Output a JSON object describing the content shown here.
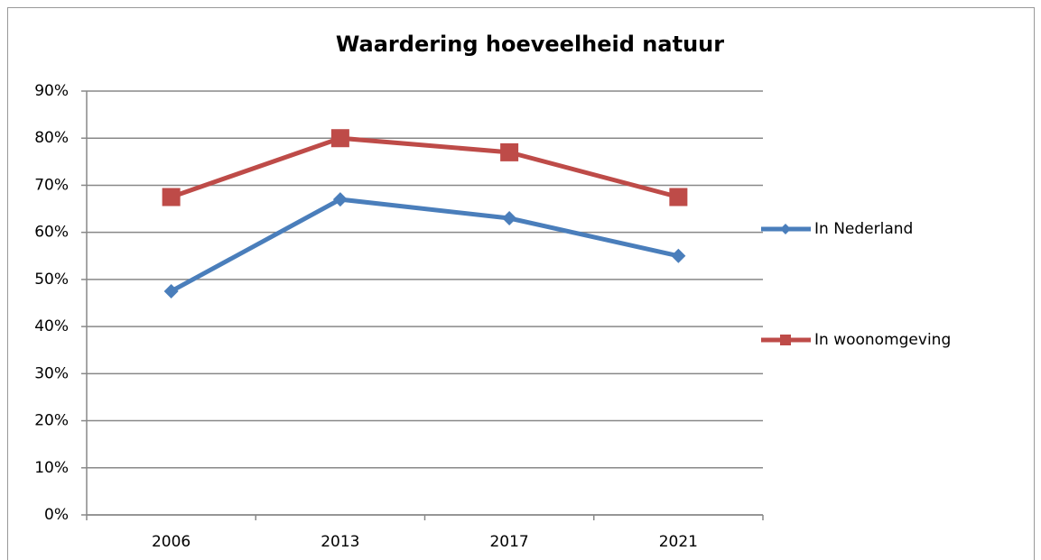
{
  "chart_data": {
    "type": "line",
    "title": "Waardering hoeveelheid natuur",
    "categories": [
      "2006",
      "2013",
      "2017",
      "2021"
    ],
    "series": [
      {
        "name": "In Nederland",
        "color": "#4a7ebb",
        "marker": "diamond",
        "values": [
          47.5,
          67,
          63,
          55
        ]
      },
      {
        "name": "In woonomgeving",
        "color": "#be4b48",
        "marker": "square",
        "values": [
          67.5,
          80,
          77,
          67.5
        ]
      }
    ],
    "ylim": [
      0,
      90
    ],
    "yticks": [
      {
        "value": 0,
        "label": "0%"
      },
      {
        "value": 10,
        "label": "10%"
      },
      {
        "value": 20,
        "label": "20%"
      },
      {
        "value": 30,
        "label": "30%"
      },
      {
        "value": 40,
        "label": "40%"
      },
      {
        "value": 50,
        "label": "50%"
      },
      {
        "value": 60,
        "label": "60%"
      },
      {
        "value": 70,
        "label": "70%"
      },
      {
        "value": 80,
        "label": "80%"
      },
      {
        "value": 90,
        "label": "90%"
      }
    ],
    "grid": true,
    "legend": "right"
  }
}
